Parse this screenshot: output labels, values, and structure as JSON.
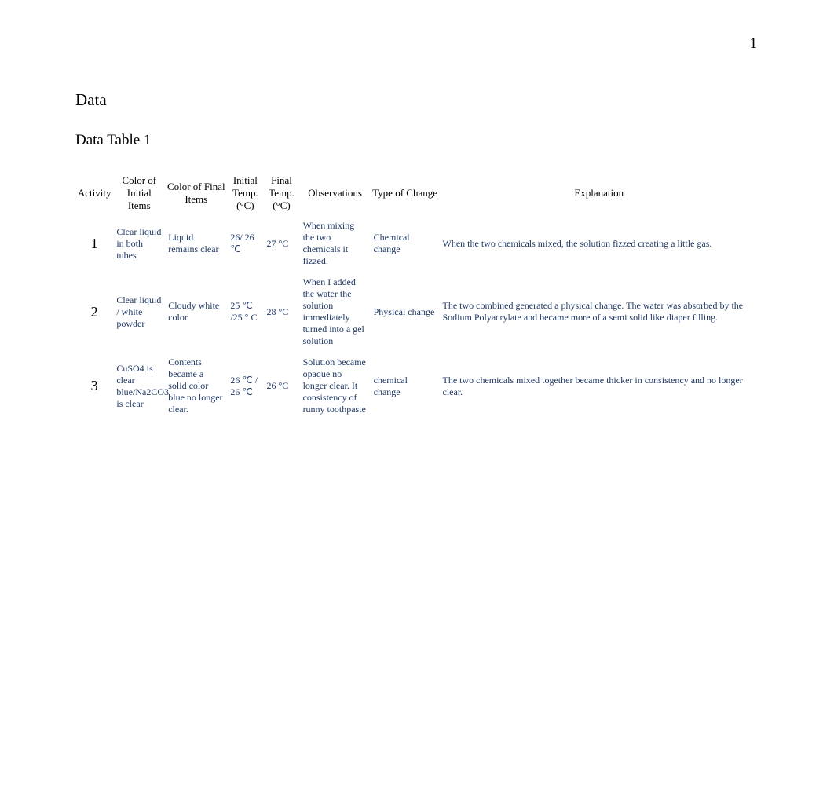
{
  "page_number": "1",
  "section_title": "Data",
  "table_title": "Data Table 1",
  "colors": {
    "data_text": "#1f3864",
    "header_text": "#000000",
    "background": "#ffffff"
  },
  "typography": {
    "body_font": "Times New Roman",
    "header_fontsize": 13,
    "data_fontsize": 12,
    "activity_fontsize": 18,
    "title_fontsize": 21,
    "subtitle_fontsize": 19
  },
  "table": {
    "columns": [
      "Activity",
      "Color of Initial Items",
      "Color of Final Items",
      "Initial Temp. (°C)",
      "Final Temp. (°C)",
      "Observations",
      "Type of Change",
      "Explanation"
    ],
    "rows": [
      {
        "activity": "1",
        "color_initial": "Clear liquid in both tubes",
        "color_final": "Liquid remains clear",
        "temp_initial": "26/ 26 ℃",
        "temp_final": "27 °C",
        "observations": "When mixing the two chemicals it fizzed.",
        "type_change": "Chemical change",
        "explanation": "When the two chemicals mixed, the solution fizzed creating a little gas."
      },
      {
        "activity": "2",
        "color_initial": "Clear liquid / white powder",
        "color_final": "Cloudy white color",
        "temp_initial": "25 ℃ /25 ° C",
        "temp_final": "28 °C",
        "observations": "When I added the water the solution immediately turned into a gel solution",
        "type_change": "Physical change",
        "explanation": "The two combined generated a physical change. The water was absorbed by the Sodium Polyacrylate and became more of a semi solid like diaper filling."
      },
      {
        "activity": "3",
        "color_initial": "CuSO4 is clear blue/Na2CO3   is clear",
        "color_final": "Contents became a solid color blue no longer clear.",
        "temp_initial": "26 ℃ / 26 ℃",
        "temp_final": "26 °C",
        "observations": "Solution became opaque no longer clear. It consistency of runny toothpaste",
        "type_change": "chemical change",
        "explanation": "The two chemicals mixed together became thicker in consistency and no longer clear."
      }
    ]
  }
}
